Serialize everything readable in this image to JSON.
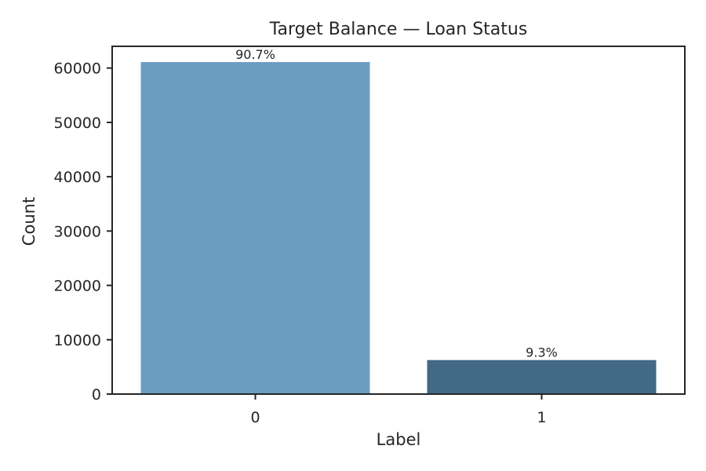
{
  "chart_data": {
    "type": "bar",
    "title": "Target Balance — Loan Status",
    "xlabel": "Label",
    "ylabel": "Count",
    "categories": [
      "0",
      "1"
    ],
    "values": [
      61100,
      6260
    ],
    "data_labels": [
      "90.7%",
      "9.3%"
    ],
    "colors": [
      "#6b9dc1",
      "#426986"
    ],
    "ylim": [
      0,
      64000
    ],
    "yticks": [
      0,
      10000,
      20000,
      30000,
      40000,
      50000,
      60000
    ],
    "grid": false,
    "legend": "none"
  }
}
